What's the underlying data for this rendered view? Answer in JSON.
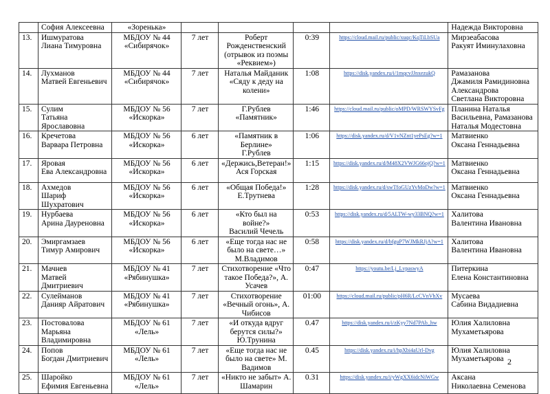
{
  "page_number": "2",
  "continuation_row": {
    "name": "София Алексеевна",
    "institution": "«Зоренька»",
    "teacher": "Надежда Викторовна"
  },
  "rows": [
    {
      "num": "13.",
      "name": [
        "Ишмуратова",
        "Лиана Тимуровна"
      ],
      "inst": [
        "МБДОУ № 44",
        "«Сибирячок»"
      ],
      "age": "7 лет",
      "poem": [
        "Роберт",
        "Рожденственский",
        "(отрывок из поэмы",
        "«Реквием»)"
      ],
      "time": "0:39",
      "link": "https://cloud.mail.ru/public/xuqc/KqTiLbSUa",
      "teacher": [
        "Мирзеабасова",
        "Ракуят Иминулаховна"
      ]
    },
    {
      "num": "14.",
      "name": [
        "Лухманов",
        "Матвей Евгеньевич"
      ],
      "inst": [
        "МБДОУ № 44",
        "«Сибирячок»"
      ],
      "age": "7 лет",
      "poem": [
        "Наталья Майданик",
        "«Сяду к деду на",
        "колени»"
      ],
      "time": "1:08",
      "link": "https://disk.yandex.ru/i/1mqcvJJnxezukQ",
      "teacher": [
        "Рамазанова",
        "Джамиля Рамидиновна",
        "Александрова",
        "Светлана Викторовна"
      ]
    },
    {
      "num": "15.",
      "name": [
        "Сулим",
        "Татьяна Ярославовна"
      ],
      "inst": [
        "МБДОУ № 56",
        "«Искорка»"
      ],
      "age": "7 лет",
      "poem": [
        "Г.Рублев «Памятник»"
      ],
      "time": "1:46",
      "link": "https://cloud.mail.ru/public/oMPD/WRSWYSvFg",
      "teacher": [
        "Планина Наталья",
        "Васильевна, Рамазанова",
        "Наталья Модестовна"
      ]
    },
    {
      "num": "16.",
      "name": [
        "Кречетова",
        "Варвара Петровна"
      ],
      "inst": [
        "МБДОУ № 56",
        "«Искорка»"
      ],
      "age": "6 лет",
      "poem": [
        "«Памятник в",
        "Берлине»",
        "Г.Рублев"
      ],
      "time": "1:06",
      "link": "https://disk.yandex.ru/d/V1vNZnt1yePsEg?w=1",
      "teacher": [
        "Матвиенко",
        "Оксана Геннадьевна"
      ]
    },
    {
      "num": "17.",
      "name": [
        "Яровая",
        "Ева Александровна"
      ],
      "inst": [
        "МБДОУ № 56",
        "«Искорка»"
      ],
      "age": "6 лет",
      "poem": [
        "«Держись,Ветеран!»",
        "Ася Горская"
      ],
      "time": "1:15",
      "link": "https://disk.yandex.ru/d/M48X2VWJG66ojQ?w=1",
      "teacher": [
        "Матвиенко",
        "Оксана Геннадьевна"
      ]
    },
    {
      "num": "18.",
      "name": [
        "Ахмедов",
        "Шариф Шухратович"
      ],
      "inst": [
        "МБДОУ № 56",
        "«Искорка»"
      ],
      "age": "6 лет",
      "poem": [
        "«Общая Победа!»",
        "Е.Трутнева"
      ],
      "time": "1:28",
      "link": "https://disk.yandex.ru/d/swTfoGUzYvMoDw?w=1",
      "teacher": [
        "Матвиенко",
        "Оксана Геннадьевна"
      ]
    },
    {
      "num": "19.",
      "name": [
        "Нурбаева",
        "Арина Дауреновна"
      ],
      "inst": [
        "МБДОУ № 56",
        "«Искорка»"
      ],
      "age": "6 лет",
      "poem": [
        "«Кто был на войне?»",
        "Василий Чечель"
      ],
      "time": "0:53",
      "link": "https://disk.yandex.ru/d/5ALTW-wy33BNQ?w=1",
      "teacher": [
        "Халитова",
        "Валентина Ивановна"
      ]
    },
    {
      "num": "20.",
      "name": [
        "Эмиргамзаев",
        "Тимур Амирович"
      ],
      "inst": [
        "МБДОУ № 56",
        "«Искорка»"
      ],
      "age": "6 лет",
      "poem": [
        "«Еще тогда нас не",
        "было на свете…»",
        "М.Владимов"
      ],
      "time": "0:58",
      "link": "https://disk.yandex.ru/d/bfguP7WJMkRJjA?w=1",
      "teacher": [
        "Халитова",
        "Валентина Ивановна"
      ]
    },
    {
      "num": "21.",
      "name": [
        "Мачнев",
        "Матвей Дмитриевич"
      ],
      "inst": [
        "МБДОУ № 41",
        "«Рябинушка»"
      ],
      "age": "7 лет",
      "poem": [
        "Стихотворение «Что",
        "такое Победа?», А.",
        "Усачев"
      ],
      "time": "0:47",
      "link": "https://youtu.be/Lj_LvpaswyA",
      "teacher": [
        "Питеркина",
        "Елена Константиновна"
      ]
    },
    {
      "num": "22.",
      "name": [
        "Сулейманов",
        "Данияр Айратович"
      ],
      "inst": [
        "МБДОУ № 41",
        "«Рябинушка»"
      ],
      "age": "7 лет",
      "poem": [
        "Стихотворение",
        "«Вечный огонь», А.",
        "Чибисов"
      ],
      "time": "01:00",
      "link": "https://cloud.mail.ru/public/pH6R/LcCVnVhXv",
      "teacher": [
        "Мусаева",
        "Сабина Видадиевна"
      ]
    },
    {
      "num": "23.",
      "name": [
        "Постовалова",
        "Марьяна",
        "Владимировна"
      ],
      "inst": [
        "МБДОУ № 61",
        "«Лель»"
      ],
      "age": "7 лет",
      "poem": [
        "«И откуда вдруг",
        "берутся силы?»",
        "Ю.Трунина"
      ],
      "time": "0.47",
      "link": "https://disk.yandex.ru/i/zKyy7Nd7PAb_hw",
      "teacher": [
        "Юлия Халиловна",
        "Мухаметьярова"
      ]
    },
    {
      "num": "24.",
      "name": [
        "Попов",
        "Богдан Дмитриевич"
      ],
      "inst": [
        "МБДОУ № 61",
        "«Лель»"
      ],
      "age": "7 лет",
      "poem": [
        "«Еще тогда нас не",
        "было на свете» М.",
        "Вадимов"
      ],
      "time": "0.45",
      "link": "https://disk.yandex.ru/i/hpXbi4aUrl-Dvg",
      "teacher": [
        "Юлия Халиловна",
        "Мухаметьярова"
      ]
    },
    {
      "num": "25.",
      "name": [
        "Шаройко",
        "Ефимия Евгеньевна"
      ],
      "inst": [
        "МБДОУ № 61",
        "«Лель»"
      ],
      "age": "7 лет",
      "poem": [
        "«Никто не забыт» А.",
        "Шамарин"
      ],
      "time": "0.31",
      "link": "https://disk.yandex.ru/i/yWgXX6idcNiWGw",
      "teacher": [
        "Аксана",
        "Николаевна Семенова"
      ]
    }
  ]
}
